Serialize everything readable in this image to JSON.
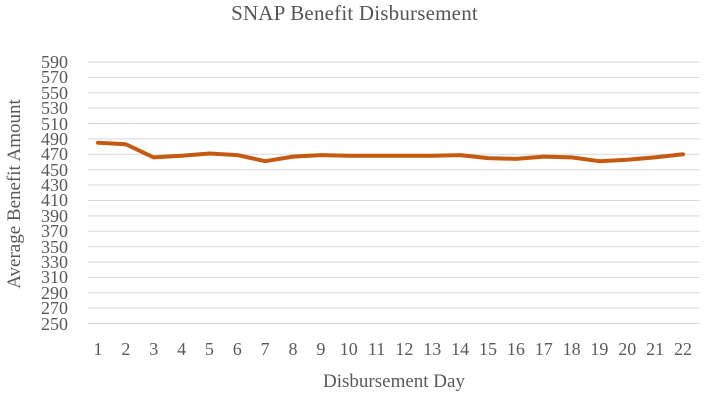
{
  "chart_data": {
    "type": "line",
    "title": "SNAP Benefit Disbursement",
    "xlabel": "Disbursement Day",
    "ylabel": "Average Benefit Amount",
    "categories": [
      1,
      2,
      3,
      4,
      5,
      6,
      7,
      8,
      9,
      10,
      11,
      12,
      13,
      14,
      15,
      16,
      17,
      18,
      19,
      20,
      21,
      22
    ],
    "values": [
      485,
      483,
      466,
      468,
      471,
      469,
      461,
      467,
      469,
      468,
      468,
      468,
      468,
      469,
      465,
      464,
      467,
      466,
      461,
      463,
      466,
      470
    ],
    "ylim": [
      250,
      590
    ],
    "ytick_step": 20,
    "grid": "horizontal",
    "legend_position": "none",
    "colors": {
      "line": "#C55A11",
      "gridline": "#D9D9D9",
      "text": "#595959"
    }
  }
}
